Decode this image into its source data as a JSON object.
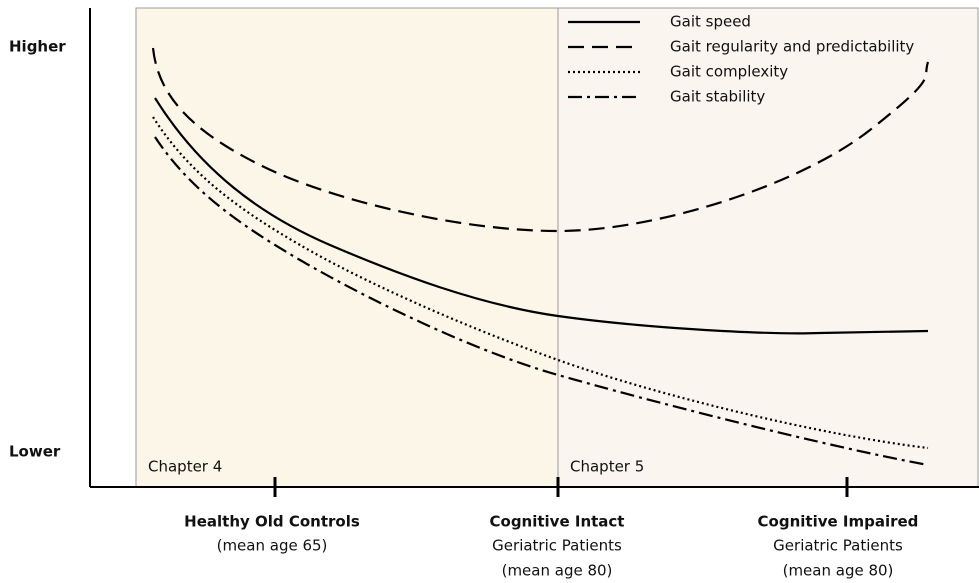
{
  "y_labels": {
    "top": "Higher",
    "bottom": "Lower"
  },
  "regions": [
    "Chapter 4",
    "Chapter 5"
  ],
  "legend": [
    "Gait speed",
    "Gait regularity and predictability",
    "Gait complexity",
    "Gait stability"
  ],
  "x_groups": [
    {
      "title": "Healthy Old Controls",
      "lines": [
        "(mean age 65)"
      ]
    },
    {
      "title": "Cognitive Intact",
      "lines": [
        "Geriatric Patients",
        "(mean age 80)"
      ]
    },
    {
      "title": "Cognitive Impaired",
      "lines": [
        "Geriatric Patients",
        "(mean age 80)"
      ]
    }
  ]
}
